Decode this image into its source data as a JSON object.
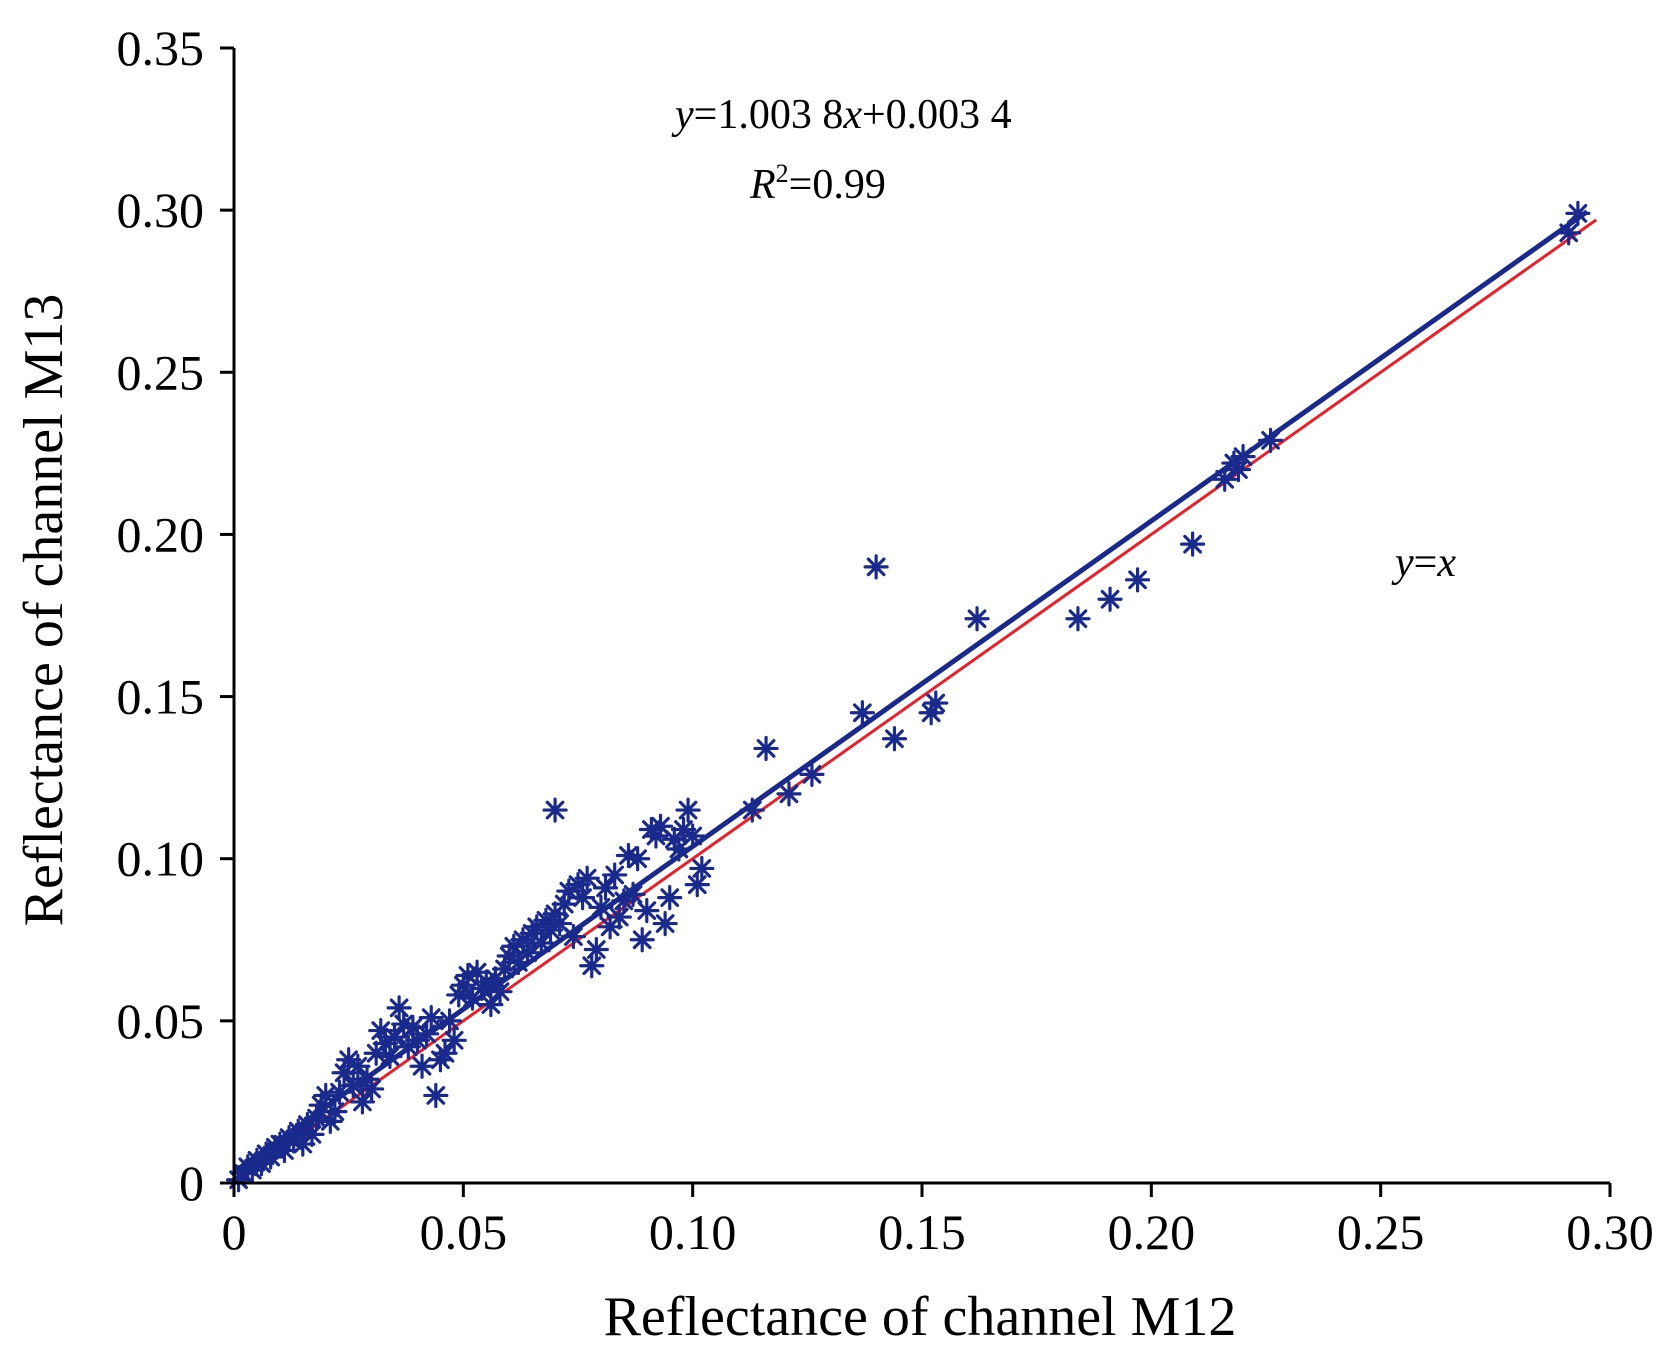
{
  "chart_data": {
    "type": "scatter",
    "xlabel": "Reflectance of channel M12",
    "ylabel": "Reflectance of channel M13",
    "xlim": [
      0,
      0.3
    ],
    "ylim": [
      0,
      0.35
    ],
    "x_ticks": [
      "0",
      "0.05",
      "0.10",
      "0.15",
      "0.20",
      "0.25",
      "0.30"
    ],
    "y_ticks": [
      "0",
      "0.05",
      "0.10",
      "0.15",
      "0.20",
      "0.25",
      "0.30",
      "0.35"
    ],
    "grid": false,
    "marker": "asterisk",
    "colors": {
      "points": "#1a2a8c",
      "fit_line": "#1a2a8c",
      "identity_line": "#e8202a"
    },
    "fit": {
      "slope": 1.0038,
      "intercept": 0.0034,
      "x_range": [
        0,
        0.295
      ]
    },
    "identity": {
      "x_range": [
        0,
        0.297
      ]
    },
    "annotations": {
      "equation": {
        "y": "y",
        "eq": "=1.003 8",
        "x": "x",
        "rest": "+0.003 4"
      },
      "r2": {
        "R": "R",
        "sup": "2",
        "rest": "=0.99"
      },
      "identity_label": {
        "y": "y",
        "eq": "=",
        "x": "x"
      }
    },
    "points": [
      [
        0.001,
        0.001
      ],
      [
        0.002,
        0.003
      ],
      [
        0.003,
        0.005
      ],
      [
        0.004,
        0.004
      ],
      [
        0.005,
        0.007
      ],
      [
        0.006,
        0.006
      ],
      [
        0.007,
        0.009
      ],
      [
        0.008,
        0.008
      ],
      [
        0.009,
        0.011
      ],
      [
        0.01,
        0.012
      ],
      [
        0.011,
        0.01
      ],
      [
        0.012,
        0.014
      ],
      [
        0.013,
        0.013
      ],
      [
        0.014,
        0.016
      ],
      [
        0.015,
        0.012
      ],
      [
        0.016,
        0.018
      ],
      [
        0.017,
        0.015
      ],
      [
        0.018,
        0.02
      ],
      [
        0.019,
        0.024
      ],
      [
        0.02,
        0.027
      ],
      [
        0.021,
        0.019
      ],
      [
        0.022,
        0.022
      ],
      [
        0.023,
        0.028
      ],
      [
        0.024,
        0.034
      ],
      [
        0.025,
        0.038
      ],
      [
        0.026,
        0.03
      ],
      [
        0.027,
        0.036
      ],
      [
        0.028,
        0.025
      ],
      [
        0.029,
        0.032
      ],
      [
        0.03,
        0.029
      ],
      [
        0.031,
        0.04
      ],
      [
        0.032,
        0.047
      ],
      [
        0.033,
        0.043
      ],
      [
        0.034,
        0.039
      ],
      [
        0.035,
        0.045
      ],
      [
        0.036,
        0.054
      ],
      [
        0.037,
        0.049
      ],
      [
        0.038,
        0.042
      ],
      [
        0.039,
        0.048
      ],
      [
        0.04,
        0.044
      ],
      [
        0.041,
        0.036
      ],
      [
        0.042,
        0.046
      ],
      [
        0.043,
        0.051
      ],
      [
        0.044,
        0.027
      ],
      [
        0.045,
        0.038
      ],
      [
        0.046,
        0.04
      ],
      [
        0.047,
        0.05
      ],
      [
        0.048,
        0.044
      ],
      [
        0.049,
        0.058
      ],
      [
        0.05,
        0.061
      ],
      [
        0.051,
        0.064
      ],
      [
        0.052,
        0.057
      ],
      [
        0.053,
        0.065
      ],
      [
        0.054,
        0.06
      ],
      [
        0.055,
        0.062
      ],
      [
        0.056,
        0.055
      ],
      [
        0.057,
        0.063
      ],
      [
        0.058,
        0.059
      ],
      [
        0.059,
        0.066
      ],
      [
        0.06,
        0.07
      ],
      [
        0.061,
        0.073
      ],
      [
        0.062,
        0.068
      ],
      [
        0.063,
        0.075
      ],
      [
        0.064,
        0.071
      ],
      [
        0.065,
        0.077
      ],
      [
        0.066,
        0.079
      ],
      [
        0.067,
        0.074
      ],
      [
        0.068,
        0.081
      ],
      [
        0.069,
        0.078
      ],
      [
        0.07,
        0.083
      ],
      [
        0.071,
        0.08
      ],
      [
        0.072,
        0.086
      ],
      [
        0.073,
        0.09
      ],
      [
        0.074,
        0.076
      ],
      [
        0.075,
        0.092
      ],
      [
        0.076,
        0.088
      ],
      [
        0.077,
        0.094
      ],
      [
        0.078,
        0.067
      ],
      [
        0.079,
        0.072
      ],
      [
        0.08,
        0.085
      ],
      [
        0.081,
        0.091
      ],
      [
        0.082,
        0.079
      ],
      [
        0.083,
        0.095
      ],
      [
        0.084,
        0.082
      ],
      [
        0.085,
        0.087
      ],
      [
        0.086,
        0.101
      ],
      [
        0.087,
        0.089
      ],
      [
        0.088,
        0.1
      ],
      [
        0.089,
        0.075
      ],
      [
        0.09,
        0.084
      ],
      [
        0.091,
        0.109
      ],
      [
        0.092,
        0.107
      ],
      [
        0.093,
        0.11
      ],
      [
        0.094,
        0.08
      ],
      [
        0.095,
        0.088
      ],
      [
        0.096,
        0.106
      ],
      [
        0.097,
        0.103
      ],
      [
        0.098,
        0.109
      ],
      [
        0.099,
        0.115
      ],
      [
        0.1,
        0.107
      ],
      [
        0.101,
        0.092
      ],
      [
        0.102,
        0.097
      ],
      [
        0.07,
        0.115
      ],
      [
        0.113,
        0.115
      ],
      [
        0.116,
        0.134
      ],
      [
        0.121,
        0.12
      ],
      [
        0.126,
        0.126
      ],
      [
        0.137,
        0.145
      ],
      [
        0.14,
        0.19
      ],
      [
        0.144,
        0.137
      ],
      [
        0.152,
        0.145
      ],
      [
        0.153,
        0.148
      ],
      [
        0.162,
        0.174
      ],
      [
        0.184,
        0.174
      ],
      [
        0.191,
        0.18
      ],
      [
        0.197,
        0.186
      ],
      [
        0.209,
        0.197
      ],
      [
        0.216,
        0.217
      ],
      [
        0.218,
        0.222
      ],
      [
        0.219,
        0.22
      ],
      [
        0.22,
        0.224
      ],
      [
        0.226,
        0.229
      ],
      [
        0.291,
        0.293
      ],
      [
        0.293,
        0.299
      ]
    ]
  }
}
